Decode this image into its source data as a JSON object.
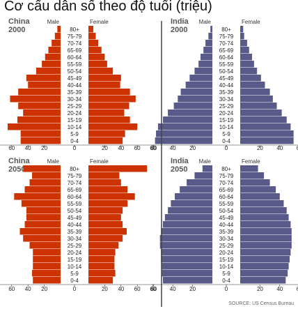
{
  "title": "Cơ cấu dân số theo độ tuổi (triệu)",
  "source": "SOURCE: US Census Bureau",
  "colors": {
    "china": "#cc3300",
    "india": "#5a5a8a",
    "axis": "#333333",
    "divider": "#444444"
  },
  "chart_data": [
    {
      "type": "bar",
      "country": "China",
      "year": "2000",
      "male_label": "Male",
      "female_label": "Female",
      "categories": [
        "80+",
        "75-79",
        "70-74",
        "65-69",
        "60-64",
        "55-59",
        "50-54",
        "45-49",
        "40-44",
        "35-39",
        "30-34",
        "25-29",
        "20-24",
        "15-19",
        "10-14",
        "5-9",
        "0-4"
      ],
      "series": [
        {
          "name": "Male",
          "values": [
            4,
            7,
            11,
            15,
            19,
            23,
            30,
            42,
            40,
            52,
            62,
            52,
            46,
            53,
            65,
            49,
            49
          ]
        },
        {
          "name": "Female",
          "values": [
            6,
            9,
            12,
            16,
            20,
            23,
            30,
            40,
            39,
            51,
            58,
            50,
            44,
            51,
            60,
            45,
            42
          ]
        }
      ],
      "xlim": [
        0,
        80
      ],
      "xticks": [
        "80",
        "60",
        "40",
        "20",
        "0",
        "20",
        "40",
        "60",
        "80"
      ]
    },
    {
      "type": "bar",
      "country": "India",
      "year": "2000",
      "male_label": "Male",
      "female_label": "Female",
      "categories": [
        "80+",
        "75-79",
        "70-74",
        "65-69",
        "60-64",
        "55-59",
        "50-54",
        "45-49",
        "40-44",
        "35-39",
        "30-34",
        "25-29",
        "20-24",
        "15-19",
        "10-14",
        "5-9",
        "0-4"
      ],
      "series": [
        {
          "name": "Male",
          "values": [
            2,
            4,
            7,
            9,
            12,
            14,
            18,
            23,
            27,
            32,
            35,
            39,
            45,
            50,
            55,
            57,
            58
          ]
        },
        {
          "name": "Female",
          "values": [
            3,
            4,
            7,
            9,
            12,
            14,
            17,
            21,
            25,
            30,
            33,
            37,
            42,
            47,
            51,
            54,
            54
          ]
        }
      ],
      "xlim": [
        0,
        60
      ],
      "xticks": [
        "60",
        "40",
        "20",
        "0",
        "20",
        "40",
        "60"
      ]
    },
    {
      "type": "bar",
      "country": "China",
      "year": "2050",
      "male_label": "Male",
      "female_label": "Female",
      "categories": [
        "80+",
        "75-79",
        "70-74",
        "65-69",
        "60-64",
        "55-59",
        "50-54",
        "45-49",
        "40-44",
        "35-39",
        "30-34",
        "25-29",
        "20-24",
        "15-19",
        "10-14",
        "5-9",
        "0-4"
      ],
      "series": [
        {
          "name": "Male",
          "values": [
            46,
            35,
            38,
            44,
            57,
            48,
            42,
            42,
            44,
            50,
            46,
            38,
            34,
            34,
            34,
            35,
            34
          ]
        },
        {
          "name": "Female",
          "values": [
            72,
            38,
            40,
            48,
            57,
            48,
            42,
            40,
            42,
            47,
            42,
            37,
            33,
            32,
            32,
            33,
            30
          ]
        }
      ],
      "xlim": [
        0,
        80
      ],
      "xticks": [
        "80",
        "60",
        "40",
        "20",
        "0",
        "20",
        "40",
        "60",
        "80"
      ]
    },
    {
      "type": "bar",
      "country": "India",
      "year": "2050",
      "male_label": "Male",
      "female_label": "Female",
      "categories": [
        "80+",
        "75-79",
        "70-74",
        "65-69",
        "60-64",
        "55-59",
        "50-54",
        "45-49",
        "40-44",
        "35-39",
        "30-34",
        "25-29",
        "20-24",
        "15-19",
        "10-14",
        "5-9",
        "0-4"
      ],
      "series": [
        {
          "name": "Male",
          "values": [
            10,
            18,
            26,
            33,
            38,
            42,
            45,
            48,
            50,
            52,
            53,
            53,
            52,
            52,
            51,
            51,
            50
          ]
        },
        {
          "name": "Female",
          "values": [
            18,
            24,
            30,
            36,
            40,
            44,
            47,
            49,
            51,
            52,
            52,
            52,
            51,
            50,
            49,
            48,
            46
          ]
        }
      ],
      "xlim": [
        0,
        60
      ],
      "xticks": [
        "60",
        "40",
        "20",
        "0",
        "20",
        "40",
        "60"
      ]
    }
  ]
}
